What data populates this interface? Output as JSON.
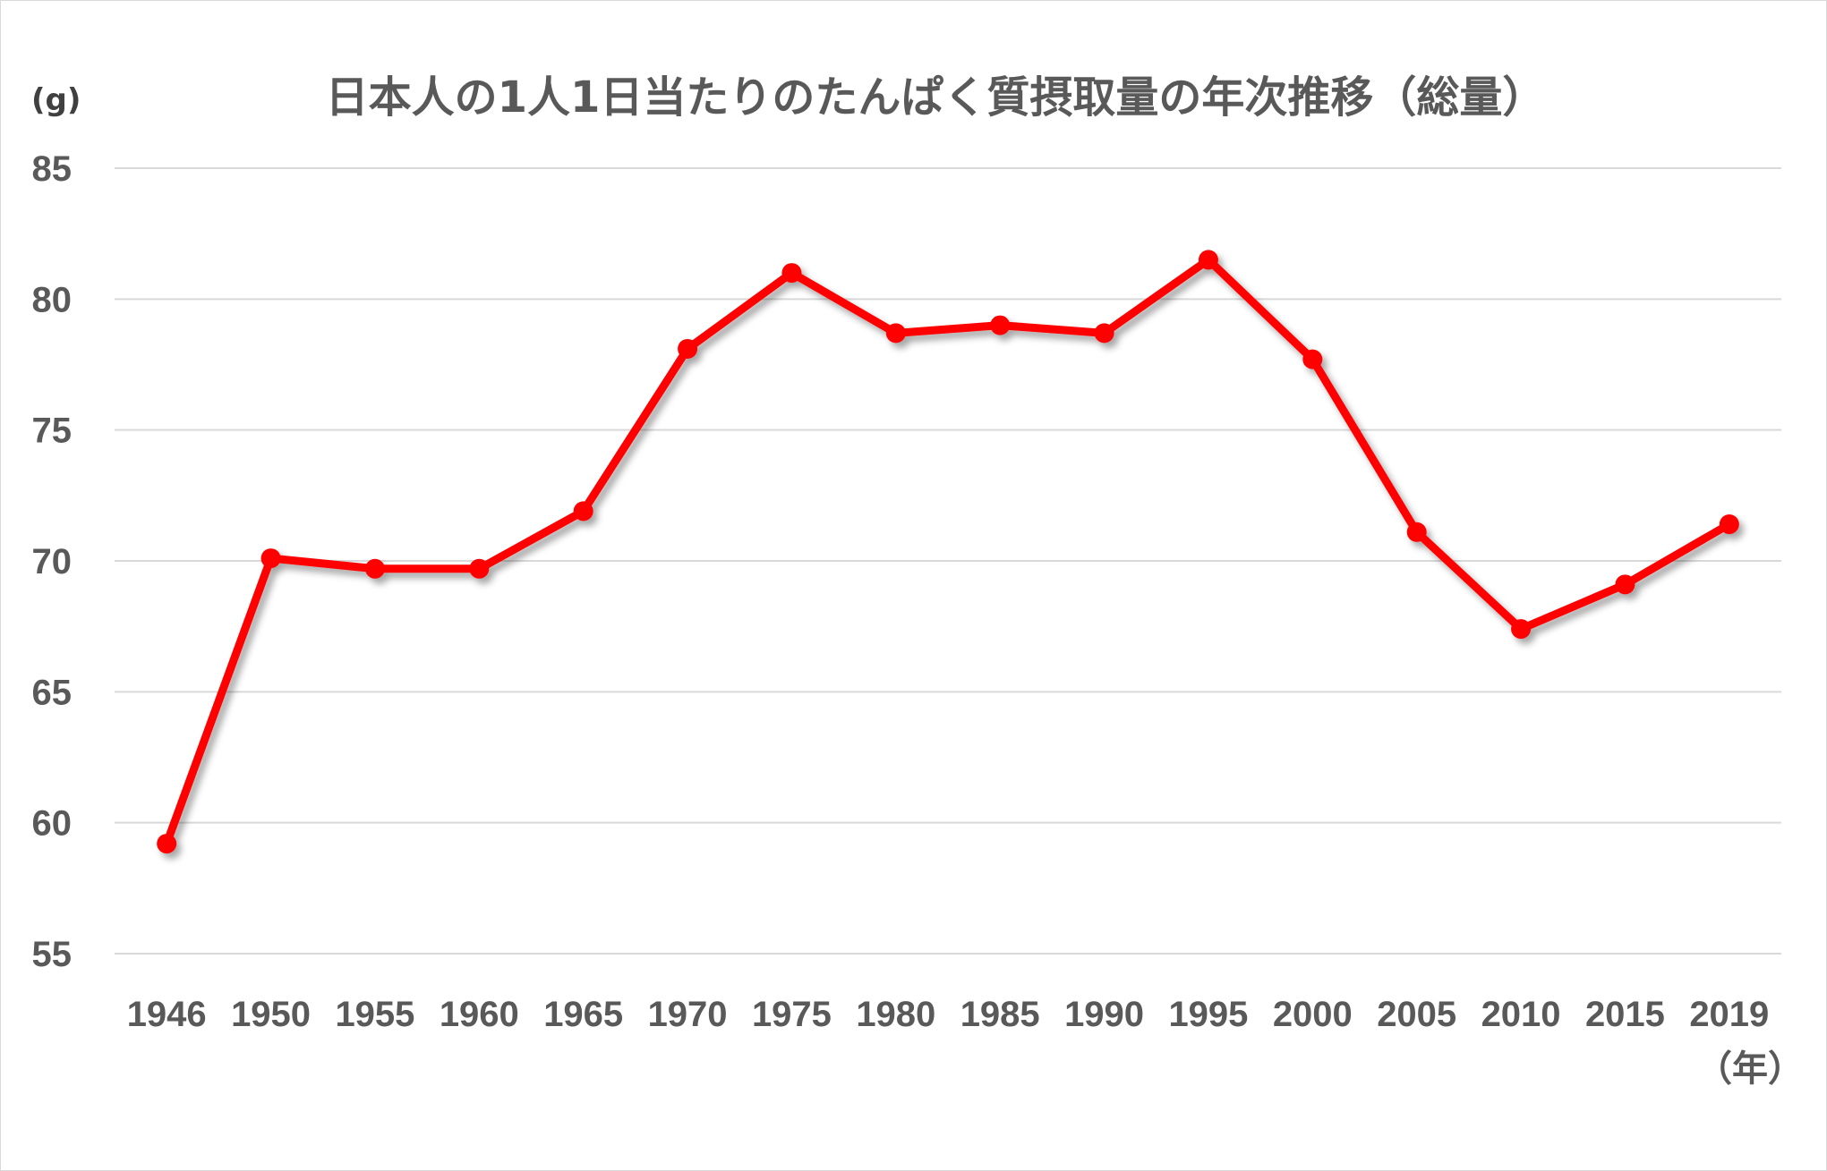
{
  "chart_data": {
    "type": "line",
    "title": "日本人の1人1日当たりのたんぱく質摂取量の年次推移（総量）",
    "y_unit_label": "(g)",
    "x_unit_label": "（年）",
    "categories": [
      "1946",
      "1950",
      "1955",
      "1960",
      "1965",
      "1970",
      "1975",
      "1980",
      "1985",
      "1990",
      "1995",
      "2000",
      "2005",
      "2010",
      "2015",
      "2019"
    ],
    "series": [
      {
        "values": [
          59.2,
          70.1,
          69.7,
          69.7,
          71.9,
          78.1,
          81.0,
          78.7,
          79.0,
          78.7,
          81.5,
          77.7,
          71.1,
          67.4,
          69.1,
          71.4
        ],
        "color": "#ff0000"
      }
    ],
    "ylim": [
      55,
      85
    ],
    "yticks": [
      "55",
      "60",
      "65",
      "70",
      "75",
      "80",
      "85"
    ],
    "grid": true,
    "legend": "none"
  }
}
